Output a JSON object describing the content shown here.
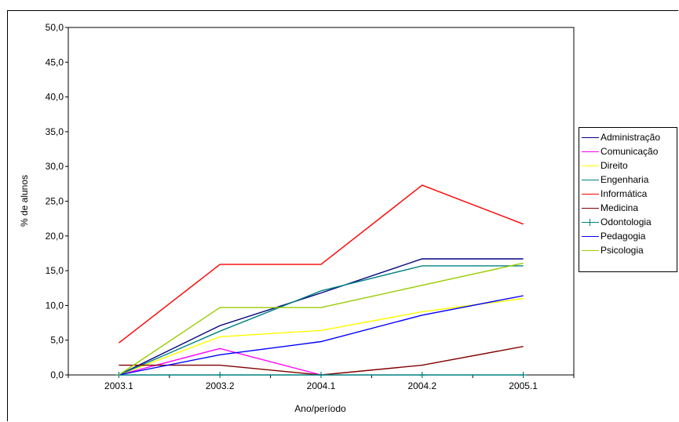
{
  "chart_data": {
    "type": "line",
    "title": "",
    "xlabel": "Ano/período",
    "ylabel": "% de alunos",
    "categories": [
      "2003.1",
      "2003.2",
      "2004.1",
      "2004.2",
      "2005.1"
    ],
    "ylim": [
      0,
      50
    ],
    "yticks": [
      "0,0",
      "5,0",
      "10,0",
      "15,0",
      "20,0",
      "25,0",
      "30,0",
      "35,0",
      "40,0",
      "45,0",
      "50,0"
    ],
    "grid": false,
    "legend_position": "right",
    "series": [
      {
        "name": "Administração",
        "color": "#000080",
        "values": [
          0.0,
          7.1,
          11.8,
          16.7,
          16.7
        ]
      },
      {
        "name": "Comunicação",
        "color": "#ff00ff",
        "values": [
          0.0,
          3.8,
          0.0,
          null,
          null
        ]
      },
      {
        "name": "Direito",
        "color": "#ffff00",
        "values": [
          0.0,
          5.5,
          6.4,
          9.1,
          11.0
        ]
      },
      {
        "name": "Engenharia",
        "color": "#008080",
        "values": [
          0.0,
          6.3,
          12.1,
          15.7,
          15.7
        ]
      },
      {
        "name": "Informática",
        "color": "#ff0000",
        "values": [
          4.6,
          15.9,
          15.9,
          27.3,
          21.7
        ]
      },
      {
        "name": "Medicina",
        "color": "#800000",
        "values": [
          1.4,
          1.4,
          0.0,
          1.4,
          4.1
        ]
      },
      {
        "name": "Odontologia",
        "color": "#008080",
        "marker": "plus",
        "values": [
          0.0,
          0.0,
          0.0,
          0.0,
          0.0
        ]
      },
      {
        "name": "Pedagogia",
        "color": "#0000ff",
        "values": [
          0.0,
          2.9,
          4.8,
          8.6,
          11.4
        ]
      },
      {
        "name": "Psicologia",
        "color": "#99cc00",
        "values": [
          0.0,
          9.7,
          9.7,
          12.9,
          16.1
        ]
      }
    ]
  }
}
